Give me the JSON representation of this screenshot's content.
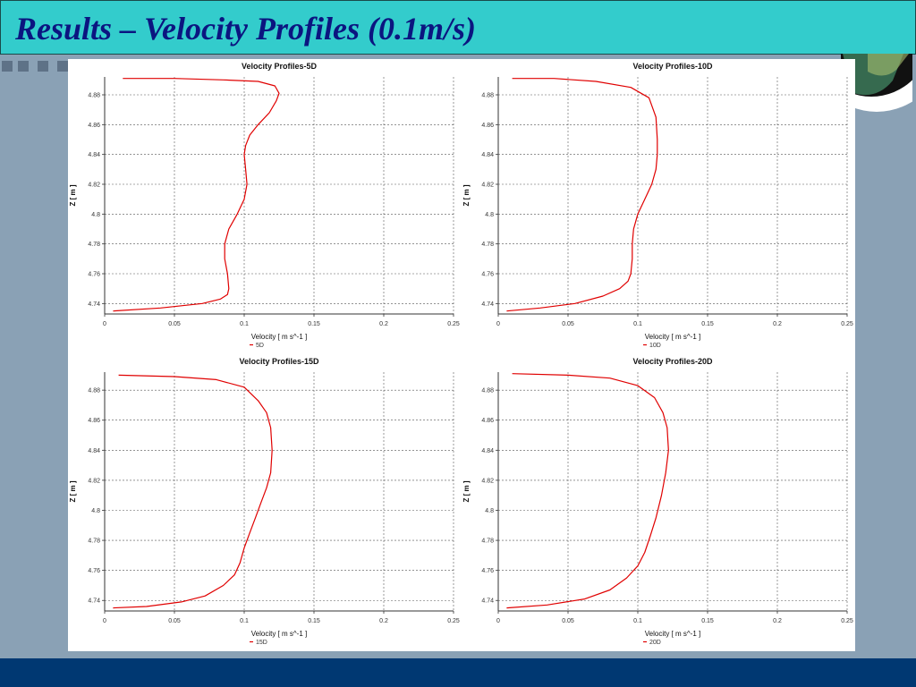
{
  "slide": {
    "title": "Results – Velocity Profiles (0.1m/s)",
    "colors": {
      "title_band": "#33cccc",
      "title_text": "#0b1580",
      "background": "#8aa1b5",
      "footer": "#003872",
      "series_line": "#e00000"
    }
  },
  "chart_data": [
    {
      "type": "line",
      "title": "Velocity Profiles-5D",
      "xlabel": "Velocity [ m s^-1 ]",
      "ylabel": "Z [ m ]",
      "xlim": [
        0,
        0.25
      ],
      "ylim": [
        4.733,
        4.892
      ],
      "xticks": [
        "0",
        "0.05",
        "0.1",
        "0.15",
        "0.2",
        "0.25"
      ],
      "yticks": [
        "4.74",
        "4.76",
        "4.78",
        "4.8",
        "4.82",
        "4.84",
        "4.86",
        "4.88"
      ],
      "grid": true,
      "legend": "bottom-left",
      "series": [
        {
          "name": "5D",
          "color": "#e00000",
          "x": [
            0.006,
            0.04,
            0.07,
            0.083,
            0.088,
            0.089,
            0.088,
            0.086,
            0.086,
            0.089,
            0.095,
            0.1,
            0.102,
            0.101,
            0.1,
            0.101,
            0.104,
            0.11,
            0.118,
            0.123,
            0.125,
            0.122,
            0.11,
            0.085,
            0.05,
            0.013
          ],
          "y": [
            4.735,
            4.737,
            4.74,
            4.743,
            4.746,
            4.75,
            4.76,
            4.77,
            4.78,
            4.79,
            4.8,
            4.81,
            4.82,
            4.83,
            4.84,
            4.846,
            4.853,
            4.86,
            4.868,
            4.876,
            4.881,
            4.886,
            4.889,
            4.89,
            4.891,
            4.891
          ]
        }
      ]
    },
    {
      "type": "line",
      "title": "Velocity Profiles-10D",
      "xlabel": "Velocity [ m s^-1 ]",
      "ylabel": "Z [ m ]",
      "xlim": [
        0,
        0.25
      ],
      "ylim": [
        4.733,
        4.892
      ],
      "xticks": [
        "0",
        "0.05",
        "0.1",
        "0.15",
        "0.2",
        "0.25"
      ],
      "yticks": [
        "4.74",
        "4.76",
        "4.78",
        "4.8",
        "4.82",
        "4.84",
        "4.86",
        "4.88"
      ],
      "grid": true,
      "legend": "bottom-left",
      "series": [
        {
          "name": "10D",
          "color": "#e00000",
          "x": [
            0.006,
            0.03,
            0.055,
            0.075,
            0.087,
            0.093,
            0.095,
            0.096,
            0.096,
            0.097,
            0.1,
            0.105,
            0.11,
            0.113,
            0.114,
            0.114,
            0.113,
            0.108,
            0.095,
            0.07,
            0.04,
            0.01
          ],
          "y": [
            4.735,
            4.737,
            4.74,
            4.745,
            4.75,
            4.755,
            4.76,
            4.77,
            4.78,
            4.79,
            4.8,
            4.81,
            4.82,
            4.83,
            4.84,
            4.85,
            4.865,
            4.878,
            4.885,
            4.889,
            4.891,
            4.891
          ]
        }
      ]
    },
    {
      "type": "line",
      "title": "Velocity Profiles-15D",
      "xlabel": "Velocity [ m s^-1 ]",
      "ylabel": "Z [ m ]",
      "xlim": [
        0,
        0.25
      ],
      "ylim": [
        4.733,
        4.892
      ],
      "xticks": [
        "0",
        "0.05",
        "0.1",
        "0.15",
        "0.2",
        "0.25"
      ],
      "yticks": [
        "4.74",
        "4.76",
        "4.78",
        "4.8",
        "4.82",
        "4.84",
        "4.86",
        "4.88"
      ],
      "grid": true,
      "legend": "bottom-left",
      "series": [
        {
          "name": "15D",
          "color": "#e00000",
          "x": [
            0.006,
            0.03,
            0.055,
            0.072,
            0.085,
            0.093,
            0.097,
            0.1,
            0.104,
            0.108,
            0.112,
            0.116,
            0.119,
            0.12,
            0.119,
            0.116,
            0.11,
            0.1,
            0.08,
            0.05,
            0.01
          ],
          "y": [
            4.735,
            4.736,
            4.739,
            4.743,
            4.75,
            4.757,
            4.765,
            4.775,
            4.785,
            4.795,
            4.805,
            4.815,
            4.825,
            4.84,
            4.855,
            4.865,
            4.873,
            4.882,
            4.887,
            4.889,
            4.89
          ]
        }
      ]
    },
    {
      "type": "line",
      "title": "Velocity Profiles-20D",
      "xlabel": "Velocity [ m s^-1 ]",
      "ylabel": "Z [ m ]",
      "xlim": [
        0,
        0.25
      ],
      "ylim": [
        4.733,
        4.892
      ],
      "xticks": [
        "0",
        "0.05",
        "0.1",
        "0.15",
        "0.2",
        "0.25"
      ],
      "yticks": [
        "4.74",
        "4.76",
        "4.78",
        "4.8",
        "4.82",
        "4.84",
        "4.86",
        "4.88"
      ],
      "grid": true,
      "legend": "bottom-left",
      "series": [
        {
          "name": "20D",
          "color": "#e00000",
          "x": [
            0.006,
            0.035,
            0.062,
            0.08,
            0.092,
            0.1,
            0.105,
            0.109,
            0.113,
            0.117,
            0.12,
            0.122,
            0.121,
            0.118,
            0.112,
            0.1,
            0.08,
            0.05,
            0.01
          ],
          "y": [
            4.735,
            4.737,
            4.741,
            4.747,
            4.755,
            4.763,
            4.772,
            4.783,
            4.795,
            4.81,
            4.825,
            4.84,
            4.855,
            4.865,
            4.875,
            4.883,
            4.888,
            4.89,
            4.891
          ]
        }
      ]
    }
  ]
}
